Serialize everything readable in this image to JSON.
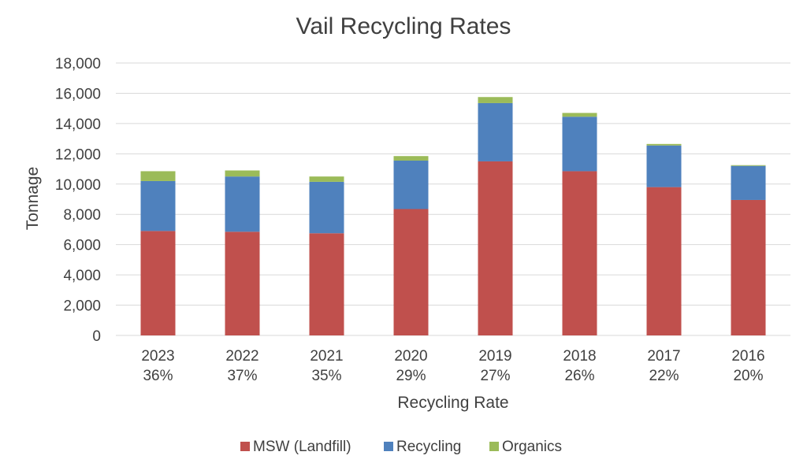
{
  "chart_data": {
    "type": "bar",
    "stacked": true,
    "title": "Vail Recycling Rates",
    "xlabel": "Recycling Rate",
    "ylabel": "Tonnage",
    "ylim": [
      0,
      18000
    ],
    "yticks": [
      "0",
      "2,000",
      "4,000",
      "6,000",
      "8,000",
      "10,000",
      "12,000",
      "14,000",
      "16,000",
      "18,000"
    ],
    "ytick_values": [
      0,
      2000,
      4000,
      6000,
      8000,
      10000,
      12000,
      14000,
      16000,
      18000
    ],
    "grid": true,
    "legend_position": "bottom",
    "categories": [
      "2023",
      "2022",
      "2021",
      "2020",
      "2019",
      "2018",
      "2017",
      "2016"
    ],
    "rates": [
      "36%",
      "37%",
      "35%",
      "29%",
      "27%",
      "26%",
      "22%",
      "20%"
    ],
    "series": [
      {
        "name": "MSW (Landfill)",
        "color": "#c0504d",
        "values": [
          6900,
          6850,
          6750,
          8350,
          11500,
          10850,
          9800,
          8950
        ]
      },
      {
        "name": "Recycling",
        "color": "#4f81bd",
        "values": [
          3300,
          3650,
          3400,
          3200,
          3850,
          3600,
          2750,
          2250
        ]
      },
      {
        "name": "Organics",
        "color": "#9bbb59",
        "values": [
          650,
          400,
          350,
          300,
          400,
          250,
          100,
          50
        ]
      }
    ]
  }
}
